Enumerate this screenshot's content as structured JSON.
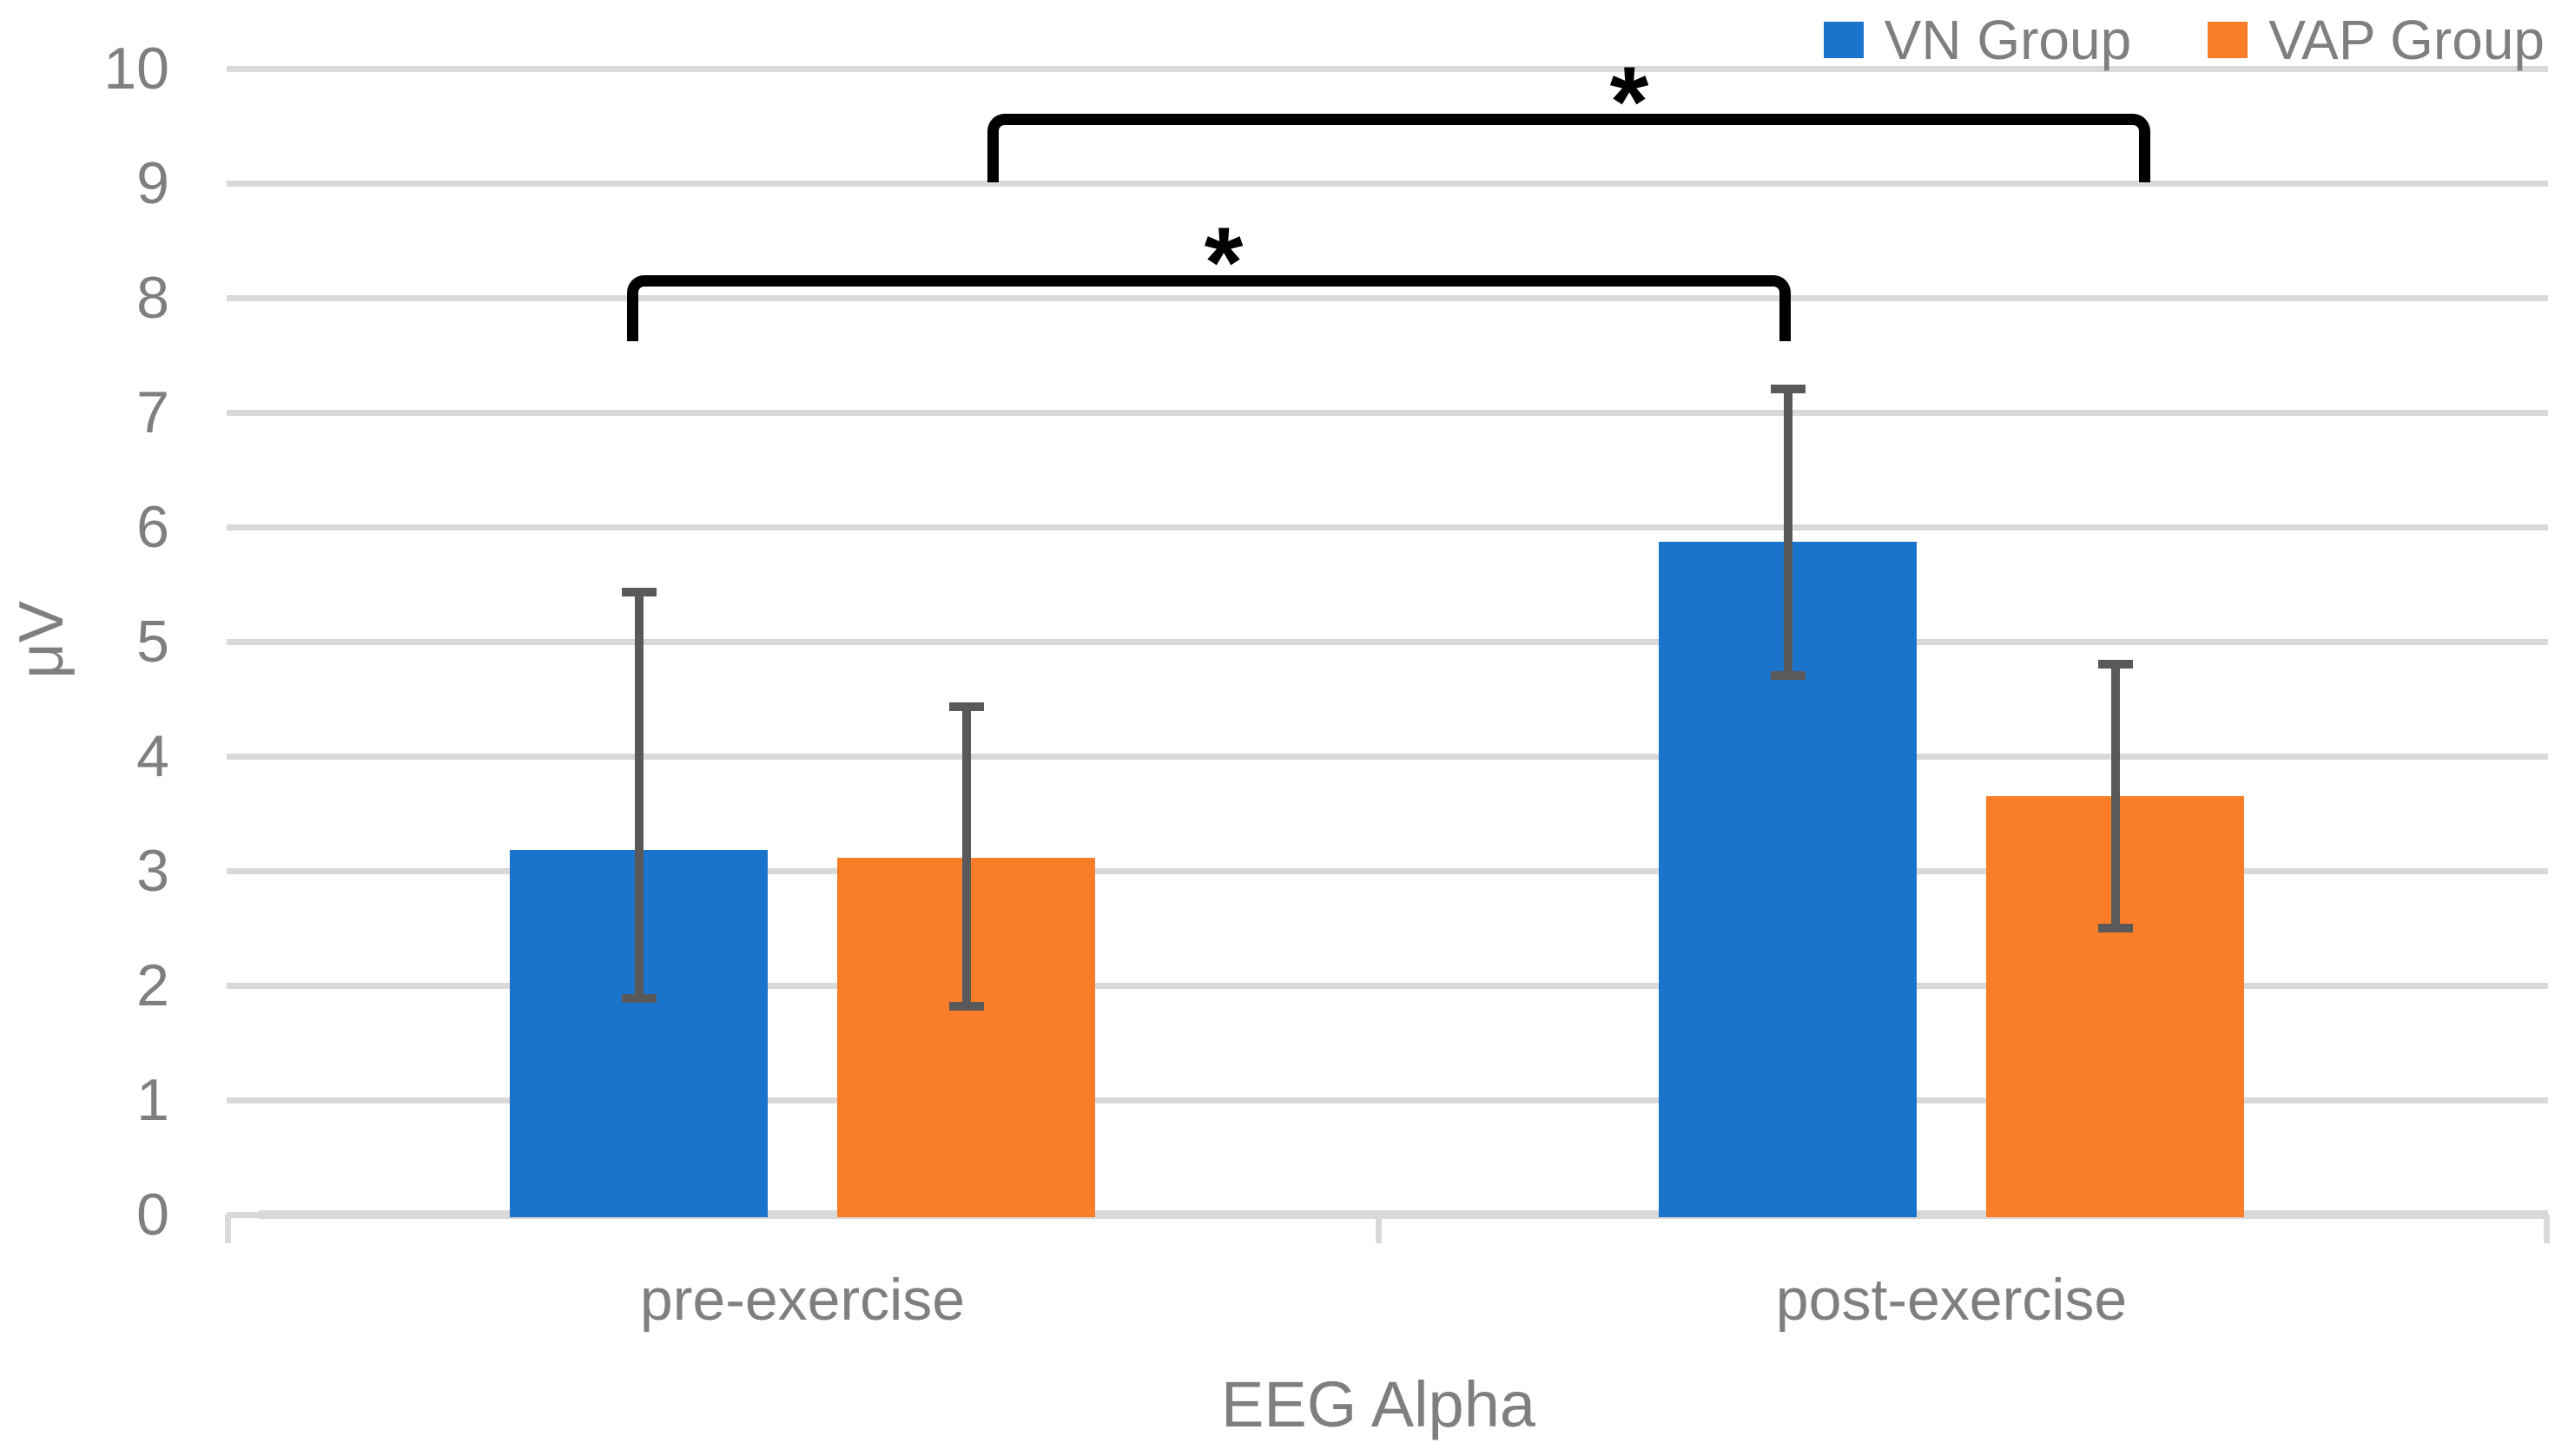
{
  "chart_data": {
    "type": "bar",
    "title": "",
    "xlabel": "EEG Alpha",
    "ylabel": "μV",
    "categories": [
      "pre-exercise",
      "post-exercise"
    ],
    "series": [
      {
        "name": "VN Group",
        "color": "#1B74CB",
        "values": [
          3.18,
          5.87
        ],
        "error_low": [
          1.85,
          4.67
        ],
        "error_high": [
          5.47,
          7.24
        ]
      },
      {
        "name": "VAP Group",
        "color": "#FA7D29",
        "values": [
          3.11,
          3.65
        ],
        "error_low": [
          1.78,
          2.46
        ],
        "error_high": [
          4.47,
          4.84
        ]
      }
    ],
    "ylim": [
      0,
      10
    ],
    "ytick_labels": [
      "0",
      "1",
      "2",
      "3",
      "4",
      "5",
      "6",
      "7",
      "8",
      "9",
      "10"
    ],
    "grid": true,
    "legend_position": "top-right",
    "significance": [
      {
        "marker": "*",
        "series": "VN Group",
        "between": [
          "pre-exercise",
          "post-exercise"
        ]
      },
      {
        "marker": "*",
        "series": "VAP Group",
        "between": [
          "pre-exercise",
          "post-exercise"
        ]
      }
    ]
  },
  "style": {
    "error_bar_color": "#595959",
    "gridline_color": "#D9D9D9",
    "axis_text_color": "#7F7F7F",
    "bracket_color": "#000000",
    "background": "#FFFFFF"
  }
}
